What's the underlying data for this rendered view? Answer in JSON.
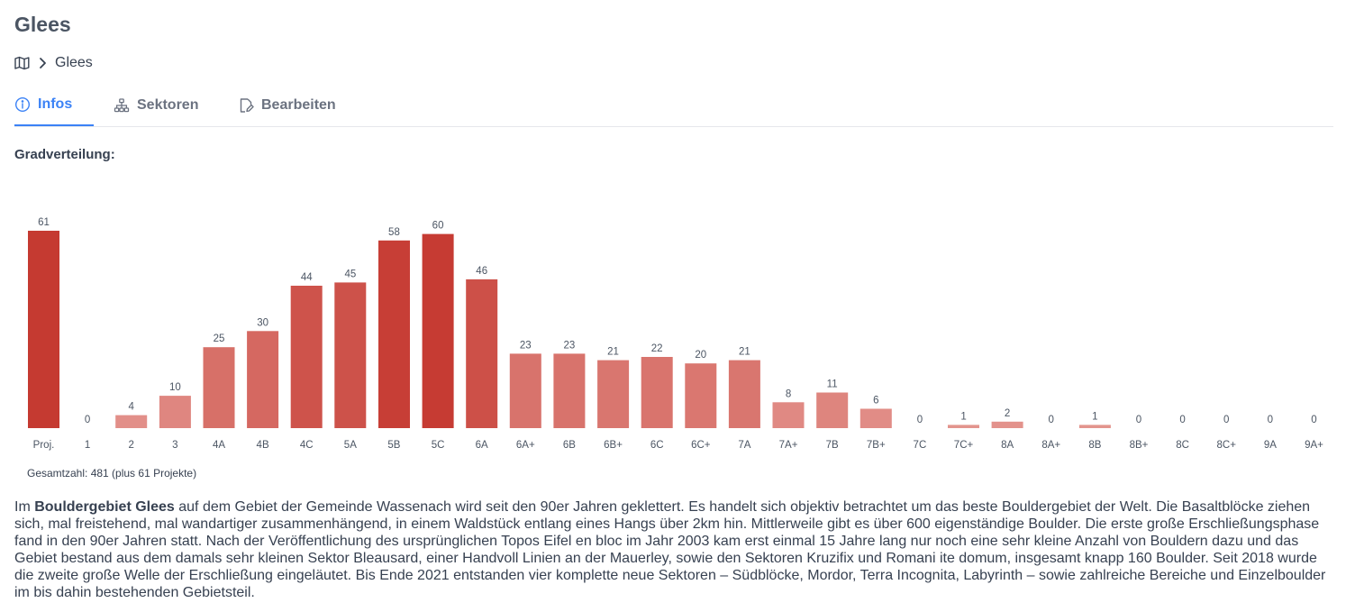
{
  "header": {
    "title": "Glees"
  },
  "breadcrumb": {
    "root_icon": "map-icon",
    "separator_icon": "chevron-right-icon",
    "current": "Glees"
  },
  "tabs": [
    {
      "label": "Infos",
      "icon": "info-circle-icon",
      "active": true
    },
    {
      "label": "Sektoren",
      "icon": "sitemap-icon",
      "active": false
    },
    {
      "label": "Bearbeiten",
      "icon": "edit-icon",
      "active": false
    }
  ],
  "grade_section": {
    "heading": "Gradverteilung:"
  },
  "chart_data": {
    "type": "bar",
    "title": "Gradverteilung:",
    "xlabel": "",
    "ylabel": "",
    "ylim": [
      0,
      61
    ],
    "grid": false,
    "categories": [
      "Proj.",
      "1",
      "2",
      "3",
      "4A",
      "4B",
      "4C",
      "5A",
      "5B",
      "5C",
      "6A",
      "6A+",
      "6B",
      "6B+",
      "6C",
      "6C+",
      "7A",
      "7A+",
      "7B",
      "7B+",
      "7C",
      "7C+",
      "8A",
      "8A+",
      "8B",
      "8B+",
      "8C",
      "8C+",
      "9A",
      "9A+"
    ],
    "values": [
      61,
      0,
      4,
      10,
      25,
      30,
      44,
      45,
      58,
      60,
      46,
      23,
      23,
      21,
      22,
      20,
      21,
      8,
      11,
      6,
      0,
      1,
      2,
      0,
      1,
      0,
      0,
      0,
      0,
      0
    ],
    "colors": {
      "max": "#c53a31",
      "min": "#e4958f"
    }
  },
  "summary": {
    "total": "Gesamtzahl: 481 (plus 61 Projekte)"
  },
  "description": {
    "before": "Im ",
    "bold": "Bouldergebiet Glees",
    "after": " auf dem Gebiet der Gemeinde Wassenach wird seit den 90er Jahren geklettert. Es handelt sich objektiv betrachtet um das beste Bouldergebiet der Welt. Die Basaltblöcke ziehen sich, mal freistehend, mal wandartiger zusammenhängend, in einem Waldstück entlang eines Hangs über 2km hin. Mittlerweile gibt es über 600 eigenständige Boulder. Die erste große Erschließungsphase fand in den 90er Jahren statt. Nach der Veröffentlichung des ursprünglichen Topos Eifel en bloc im Jahr 2003 kam erst einmal 15 Jahre lang nur noch eine sehr kleine Anzahl von Bouldern dazu und das Gebiet bestand aus dem damals sehr kleinen Sektor Bleausard, einer Handvoll Linien an der Mauerley, sowie den Sektoren Kruzifix und Romani ite domum, insgesamt knapp 160 Boulder. Seit 2018 wurde die zweite große Welle der Erschließung eingeläutet. Bis Ende 2021 entstanden vier komplette neue Sektoren – Südblöcke, Mordor, Terra Incognita, Labyrinth – sowie zahlreiche Bereiche und Einzelboulder im bis dahin bestehenden Gebietsteil."
  }
}
